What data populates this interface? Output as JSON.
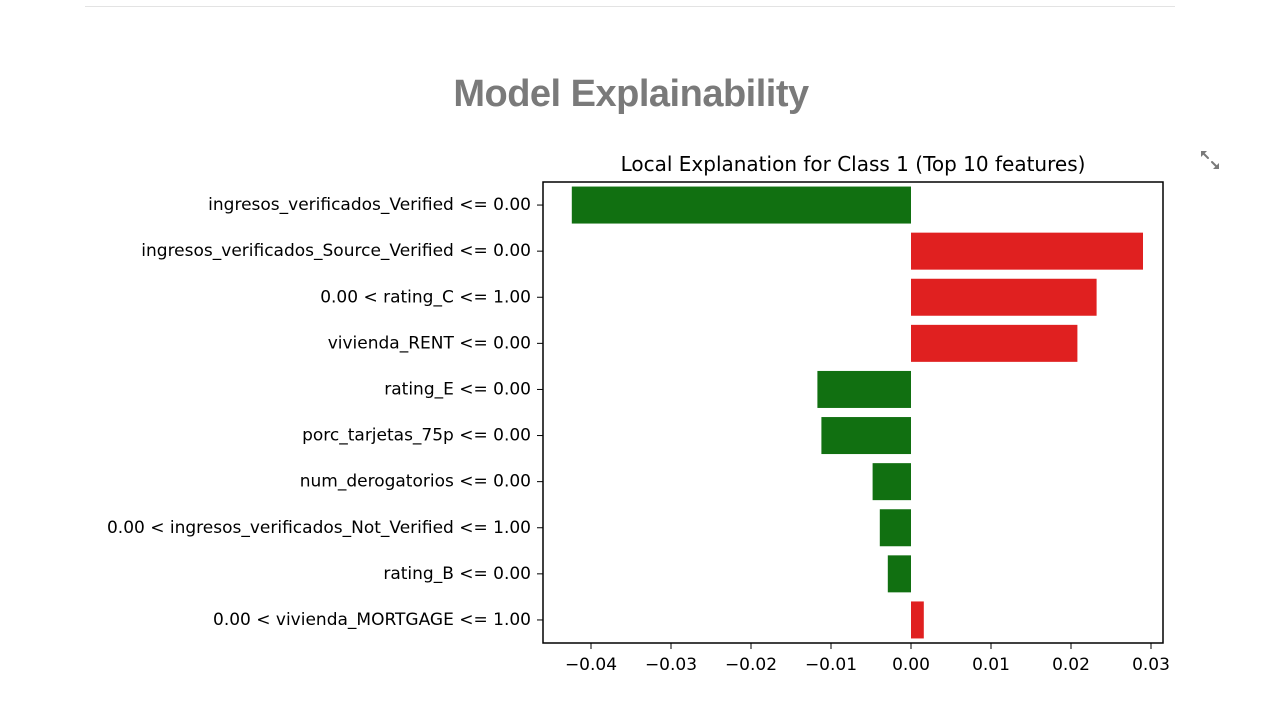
{
  "page": {
    "title": "Model Explainability",
    "fullscreen_icon": "expand-icon"
  },
  "chart_data": {
    "type": "bar",
    "orientation": "horizontal",
    "title": "Local Explanation for Class 1 (Top 10 features)",
    "xlabel": "",
    "ylabel": "",
    "xlim": [
      -0.046,
      0.0315
    ],
    "grid": false,
    "categories": [
      "ingresos_verificados_Verified <= 0.00",
      "ingresos_verificados_Source_Verified <= 0.00",
      "0.00 < rating_C <= 1.00",
      "vivienda_RENT <= 0.00",
      "rating_E <= 0.00",
      "porc_tarjetas_75p <= 0.00",
      "num_derogatorios <= 0.00",
      "0.00 < ingresos_verificados_Not_Verified <= 1.00",
      "rating_B <= 0.00",
      "0.00 < vivienda_MORTGAGE <= 1.00"
    ],
    "values": [
      -0.0424,
      0.029,
      0.0232,
      0.0208,
      -0.0117,
      -0.0112,
      -0.0048,
      -0.0039,
      -0.0029,
      0.0016
    ],
    "xticks": [
      -0.04,
      -0.03,
      -0.02,
      -0.01,
      0.0,
      0.01,
      0.02,
      0.03
    ],
    "xtick_labels": [
      "−0.04",
      "−0.03",
      "−0.02",
      "−0.01",
      "0.00",
      "0.01",
      "0.02",
      "0.03"
    ],
    "colors": {
      "positive": "#e02020",
      "negative": "#117011"
    }
  }
}
